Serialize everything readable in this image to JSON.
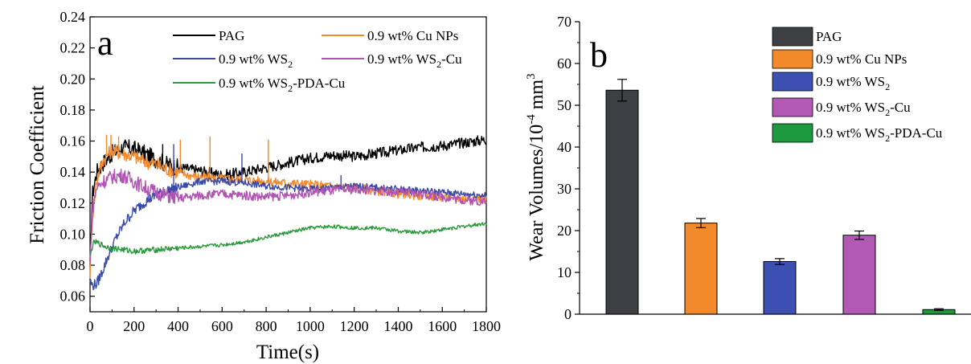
{
  "colors": {
    "PAG": "#000000",
    "CuNPs": "#f28a2c",
    "WS2": "#3a4aa8",
    "WS2Cu": "#b053b3",
    "WS2PDACu": "#2a9a3c",
    "bar_PAG": "#3d3f42",
    "bar_CuNPs": "#f2892a",
    "bar_WS2": "#3d4fb0",
    "bar_WS2Cu": "#b259b6",
    "bar_WS2PDACu": "#1e9a3e"
  },
  "chart_data": [
    {
      "panel_label": "a",
      "type": "line",
      "xlabel": "Time(s)",
      "ylabel": "Friction Coefficient",
      "xlim": [
        0,
        1800
      ],
      "ylim": [
        0.05,
        0.24
      ],
      "xticks": [
        "0",
        "200",
        "400",
        "600",
        "800",
        "1000",
        "1200",
        "1400",
        "1600",
        "1800"
      ],
      "yticks": [
        "0.06",
        "0.08",
        "0.10",
        "0.12",
        "0.14",
        "0.16",
        "0.18",
        "0.20",
        "0.22",
        "0.24"
      ],
      "legend_position": "top-right",
      "series": [
        {
          "name": "PAG",
          "color_key": "PAG",
          "x": [
            0,
            10,
            30,
            60,
            100,
            150,
            200,
            250,
            300,
            350,
            400,
            450,
            500,
            600,
            700,
            800,
            900,
            1000,
            1100,
            1200,
            1300,
            1400,
            1500,
            1600,
            1700,
            1800
          ],
          "y": [
            0.078,
            0.125,
            0.14,
            0.146,
            0.152,
            0.156,
            0.155,
            0.152,
            0.148,
            0.145,
            0.143,
            0.142,
            0.141,
            0.138,
            0.14,
            0.143,
            0.146,
            0.149,
            0.151,
            0.15,
            0.152,
            0.154,
            0.156,
            0.157,
            0.159,
            0.161
          ]
        },
        {
          "name": "0.9 wt% Cu NPs",
          "color_key": "CuNPs",
          "x": [
            0,
            10,
            30,
            60,
            100,
            150,
            200,
            250,
            300,
            350,
            400,
            450,
            500,
            600,
            700,
            800,
            900,
            1000,
            1100,
            1200,
            1300,
            1400,
            1500,
            1600,
            1700,
            1800
          ],
          "y": [
            0.075,
            0.11,
            0.135,
            0.148,
            0.154,
            0.152,
            0.15,
            0.147,
            0.145,
            0.142,
            0.14,
            0.138,
            0.137,
            0.136,
            0.135,
            0.134,
            0.133,
            0.132,
            0.131,
            0.13,
            0.128,
            0.126,
            0.125,
            0.124,
            0.123,
            0.123
          ]
        },
        {
          "name": "0.9 wt% WS2",
          "color_key": "WS2",
          "x": [
            0,
            10,
            30,
            50,
            80,
            120,
            160,
            200,
            250,
            300,
            350,
            400,
            450,
            500,
            600,
            700,
            800,
            900,
            1000,
            1100,
            1200,
            1300,
            1400,
            1500,
            1600,
            1700,
            1800
          ],
          "y": [
            0.07,
            0.067,
            0.068,
            0.074,
            0.085,
            0.098,
            0.108,
            0.115,
            0.121,
            0.125,
            0.128,
            0.13,
            0.132,
            0.134,
            0.134,
            0.133,
            0.131,
            0.13,
            0.129,
            0.13,
            0.131,
            0.13,
            0.129,
            0.128,
            0.127,
            0.126,
            0.125
          ]
        },
        {
          "name": "0.9 wt% WS2-Cu",
          "color_key": "WS2Cu",
          "x": [
            0,
            10,
            30,
            60,
            100,
            150,
            200,
            250,
            300,
            350,
            400,
            450,
            500,
            600,
            700,
            800,
            900,
            1000,
            1100,
            1200,
            1300,
            1400,
            1500,
            1600,
            1700,
            1800
          ],
          "y": [
            0.08,
            0.115,
            0.13,
            0.134,
            0.137,
            0.138,
            0.134,
            0.13,
            0.127,
            0.125,
            0.123,
            0.124,
            0.125,
            0.126,
            0.125,
            0.124,
            0.125,
            0.127,
            0.128,
            0.129,
            0.128,
            0.127,
            0.126,
            0.124,
            0.122,
            0.121
          ]
        },
        {
          "name": "0.9 wt% WS2-PDA-Cu",
          "color_key": "WS2PDACu",
          "x": [
            0,
            10,
            20,
            40,
            70,
            100,
            150,
            200,
            300,
            400,
            500,
            600,
            700,
            800,
            900,
            1000,
            1100,
            1200,
            1300,
            1400,
            1500,
            1600,
            1700,
            1800
          ],
          "y": [
            0.085,
            0.092,
            0.095,
            0.094,
            0.092,
            0.091,
            0.09,
            0.089,
            0.09,
            0.091,
            0.092,
            0.093,
            0.095,
            0.098,
            0.101,
            0.104,
            0.105,
            0.104,
            0.104,
            0.102,
            0.101,
            0.103,
            0.105,
            0.107
          ]
        }
      ],
      "spikes": [
        {
          "color_key": "CuNPs",
          "x": [
            75,
            95,
            130,
            410,
            545,
            810
          ],
          "y": [
            0.164,
            0.164,
            0.163,
            0.161,
            0.163,
            0.161
          ]
        },
        {
          "color_key": "WS2",
          "x": [
            380,
            690,
            1140
          ],
          "y": [
            0.158,
            0.152,
            0.138
          ]
        },
        {
          "color_key": "PAG",
          "x": [
            160,
            330
          ],
          "y": [
            0.161,
            0.158
          ]
        }
      ]
    },
    {
      "panel_label": "b",
      "type": "bar",
      "ylabel": "Wear Volumes/10",
      "ylabel_exp": "-4",
      "ylabel_unit": " mm",
      "ylabel_unit_exp": "3",
      "ylim": [
        0,
        70
      ],
      "yticks": [
        "0",
        "10",
        "20",
        "30",
        "40",
        "50",
        "60",
        "70"
      ],
      "categories": [
        "PAG",
        "0.9 wt% Cu NPs",
        "0.9 wt% WS2",
        "0.9 wt% WS2-Cu",
        "0.9 wt% WS2-PDA-Cu"
      ],
      "values": [
        53.6,
        21.8,
        12.6,
        18.9,
        1.1
      ],
      "errors": [
        2.6,
        1.1,
        0.7,
        1.0,
        0.2
      ],
      "color_keys": [
        "bar_PAG",
        "bar_CuNPs",
        "bar_WS2",
        "bar_WS2Cu",
        "bar_WS2PDACu"
      ],
      "legend_position": "top-right"
    }
  ],
  "legend_a": {
    "pag": "PAG",
    "cu": "0.9 wt% Cu NPs",
    "ws2_pre": "0.9 wt% WS",
    "ws2cu_pre": "0.9 wt% WS",
    "ws2cu_post": "-Cu",
    "pda_pre": "0.9 wt% WS",
    "pda_post": "-PDA-Cu",
    "sub": "2"
  },
  "legend_b": {
    "pag": "PAG",
    "cu": "0.9 wt% Cu NPs",
    "ws2_pre": "0.9 wt% WS",
    "ws2cu_pre": "0.9 wt% WS",
    "ws2cu_post": "-Cu",
    "pda_pre": "0.9 wt% WS",
    "pda_post": "-PDA-Cu",
    "sub": "2"
  }
}
